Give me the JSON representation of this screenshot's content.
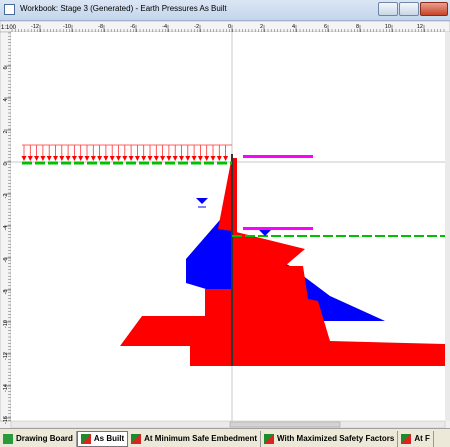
{
  "window": {
    "title": "Workbook: Stage 3 (Generated) - Earth Pressures As Built",
    "scale": "1:100"
  },
  "ruler": {
    "top": [
      "-12",
      "-10",
      "-8",
      "-6",
      "-4",
      "-2",
      "0",
      "2",
      "4",
      "6",
      "8",
      "10",
      "12"
    ],
    "left": [
      "6",
      "4",
      "2",
      "0",
      "-2",
      "-4",
      "-6",
      "-8",
      "-10",
      "-12",
      "-14",
      "-16"
    ]
  },
  "tabs": [
    "Drawing Board",
    "As Built",
    "At Minimum Safe Embedment",
    "With Maximized Safety Factors",
    "At F"
  ]
}
